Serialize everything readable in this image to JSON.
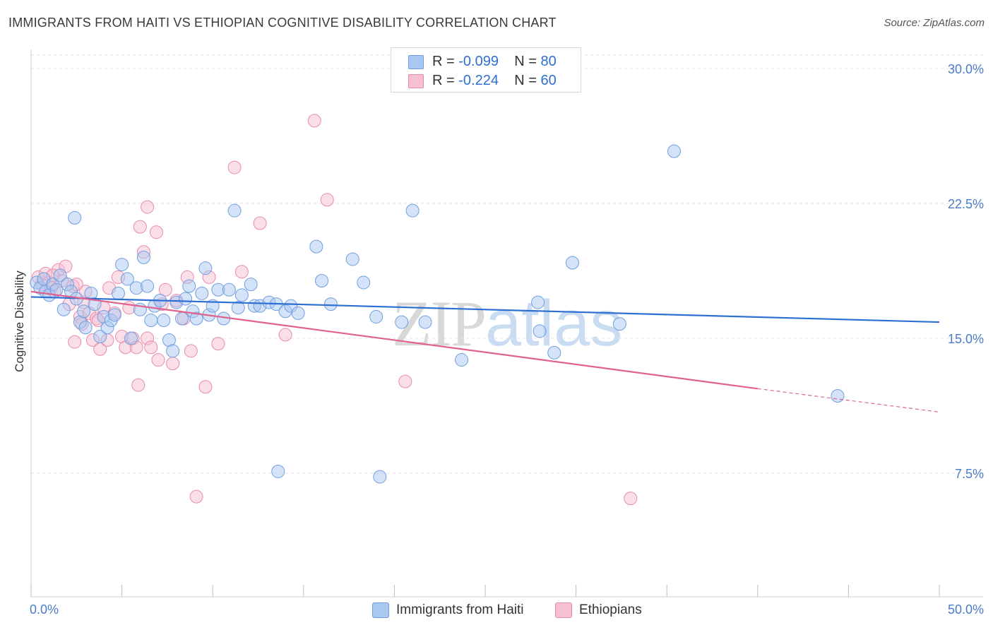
{
  "header": {
    "title": "IMMIGRANTS FROM HAITI VS ETHIOPIAN COGNITIVE DISABILITY CORRELATION CHART",
    "source": "Source: ZipAtlas.com"
  },
  "stats": [
    {
      "r_label": "R =",
      "r_value": "-0.099",
      "n_label": "N =",
      "n_value": "80",
      "color": "#a9c8f0",
      "border": "#6f9fe0"
    },
    {
      "r_label": "R =",
      "r_value": "-0.224",
      "n_label": "N =",
      "n_value": "60",
      "color": "#f7c0d2",
      "border": "#e88aac"
    }
  ],
  "legend": {
    "haiti": "Immigrants from Haiti",
    "ethiopians": "Ethiopians"
  },
  "watermark": {
    "zip": "ZIP",
    "atlas": "atlas"
  },
  "colors": {
    "haiti_fill": "#a9c8f0",
    "haiti_stroke": "#6f9fe0",
    "haiti_line": "#2e6fd3",
    "eth_fill": "#f7c0d2",
    "eth_stroke": "#e88aac",
    "eth_line": "#e0628f",
    "tick_text": "#4a7cc9",
    "grid": "#e3e3e3"
  },
  "chart_data": {
    "type": "scatter",
    "title": "IMMIGRANTS FROM HAITI VS ETHIOPIAN COGNITIVE DISABILITY CORRELATION CHART",
    "xlabel": "",
    "ylabel": "Cognitive Disability",
    "xlim": [
      0,
      50
    ],
    "ylim": [
      0,
      31
    ],
    "x_tick_labels": [
      "0.0%",
      "50.0%"
    ],
    "y_ticks": [
      7.5,
      15.0,
      22.5,
      30.0
    ],
    "y_tick_labels": [
      "7.5%",
      "15.0%",
      "22.5%",
      "30.0%"
    ],
    "series": [
      {
        "name": "Immigrants from Haiti",
        "r": -0.099,
        "n": 80,
        "trend": {
          "x0": 0,
          "y0": 17.3,
          "x1": 50,
          "y1": 15.9
        },
        "points": [
          [
            0.3,
            18.1
          ],
          [
            0.5,
            17.8
          ],
          [
            0.7,
            18.3
          ],
          [
            0.8,
            17.6
          ],
          [
            1.0,
            17.4
          ],
          [
            1.2,
            18.0
          ],
          [
            1.4,
            17.7
          ],
          [
            1.6,
            18.5
          ],
          [
            1.8,
            16.6
          ],
          [
            2.0,
            18.0
          ],
          [
            2.2,
            17.6
          ],
          [
            2.5,
            17.2
          ],
          [
            2.4,
            21.7
          ],
          [
            2.7,
            15.9
          ],
          [
            2.9,
            16.5
          ],
          [
            3.0,
            15.6
          ],
          [
            3.3,
            17.5
          ],
          [
            3.5,
            16.9
          ],
          [
            3.8,
            15.1
          ],
          [
            4.0,
            16.2
          ],
          [
            4.2,
            15.6
          ],
          [
            4.4,
            16.0
          ],
          [
            4.6,
            16.3
          ],
          [
            4.8,
            17.5
          ],
          [
            5.0,
            19.1
          ],
          [
            5.3,
            18.3
          ],
          [
            5.5,
            15.0
          ],
          [
            5.8,
            17.8
          ],
          [
            6.0,
            16.6
          ],
          [
            6.2,
            19.5
          ],
          [
            6.4,
            17.9
          ],
          [
            6.6,
            16.0
          ],
          [
            6.8,
            16.8
          ],
          [
            7.1,
            17.1
          ],
          [
            7.3,
            16.0
          ],
          [
            7.6,
            14.9
          ],
          [
            7.8,
            14.3
          ],
          [
            8.0,
            17.0
          ],
          [
            8.3,
            16.1
          ],
          [
            8.5,
            17.2
          ],
          [
            8.7,
            17.9
          ],
          [
            8.9,
            16.5
          ],
          [
            9.1,
            16.1
          ],
          [
            9.4,
            17.5
          ],
          [
            9.6,
            18.9
          ],
          [
            9.8,
            16.3
          ],
          [
            10.0,
            16.8
          ],
          [
            10.3,
            17.7
          ],
          [
            10.6,
            16.1
          ],
          [
            10.9,
            17.7
          ],
          [
            11.2,
            22.1
          ],
          [
            11.4,
            16.7
          ],
          [
            11.6,
            17.4
          ],
          [
            12.1,
            18.0
          ],
          [
            12.3,
            16.8
          ],
          [
            12.6,
            16.8
          ],
          [
            13.1,
            17.0
          ],
          [
            13.5,
            16.9
          ],
          [
            14.0,
            16.5
          ],
          [
            14.3,
            16.8
          ],
          [
            14.7,
            16.4
          ],
          [
            15.7,
            20.1
          ],
          [
            16.0,
            18.2
          ],
          [
            16.5,
            16.9
          ],
          [
            17.7,
            19.4
          ],
          [
            18.3,
            18.1
          ],
          [
            13.6,
            7.6
          ],
          [
            19.2,
            7.3
          ],
          [
            19.0,
            16.2
          ],
          [
            20.4,
            15.9
          ],
          [
            21.0,
            22.1
          ],
          [
            21.7,
            15.9
          ],
          [
            23.7,
            13.8
          ],
          [
            27.9,
            17.0
          ],
          [
            28.0,
            15.4
          ],
          [
            28.8,
            14.2
          ],
          [
            29.8,
            19.2
          ],
          [
            32.4,
            15.8
          ],
          [
            35.4,
            25.4
          ],
          [
            44.4,
            11.8
          ]
        ]
      },
      {
        "name": "Ethiopians",
        "r": -0.224,
        "n": 60,
        "trend": {
          "x0": 0,
          "y0": 17.6,
          "x1": 40,
          "y1": 12.2
        },
        "trend_dashed": {
          "x0": 40,
          "y0": 12.2,
          "x1": 50,
          "y1": 10.9
        },
        "points": [
          [
            0.4,
            18.4
          ],
          [
            0.6,
            18.0
          ],
          [
            0.8,
            18.6
          ],
          [
            1.0,
            18.1
          ],
          [
            1.1,
            17.8
          ],
          [
            1.3,
            17.6
          ],
          [
            1.5,
            18.8
          ],
          [
            1.7,
            18.2
          ],
          [
            1.9,
            19.0
          ],
          [
            2.1,
            16.9
          ],
          [
            2.3,
            17.9
          ],
          [
            2.5,
            18.0
          ],
          [
            2.4,
            14.8
          ],
          [
            2.7,
            16.2
          ],
          [
            2.9,
            17.0
          ],
          [
            3.0,
            17.6
          ],
          [
            3.2,
            16.4
          ],
          [
            3.4,
            14.9
          ],
          [
            3.6,
            16.1
          ],
          [
            3.8,
            14.4
          ],
          [
            4.0,
            16.7
          ],
          [
            4.2,
            14.9
          ],
          [
            4.3,
            17.8
          ],
          [
            4.6,
            16.4
          ],
          [
            4.8,
            18.4
          ],
          [
            5.0,
            15.1
          ],
          [
            5.2,
            14.5
          ],
          [
            5.4,
            16.7
          ],
          [
            5.6,
            15.0
          ],
          [
            5.8,
            14.5
          ],
          [
            5.9,
            12.4
          ],
          [
            6.0,
            21.2
          ],
          [
            6.2,
            19.8
          ],
          [
            6.4,
            15.0
          ],
          [
            6.6,
            14.5
          ],
          [
            6.9,
            20.9
          ],
          [
            7.0,
            13.8
          ],
          [
            7.4,
            17.7
          ],
          [
            7.8,
            13.6
          ],
          [
            8.0,
            17.1
          ],
          [
            8.4,
            16.1
          ],
          [
            8.6,
            18.4
          ],
          [
            8.8,
            14.3
          ],
          [
            9.6,
            12.3
          ],
          [
            9.8,
            18.4
          ],
          [
            10.3,
            14.7
          ],
          [
            11.2,
            24.5
          ],
          [
            11.6,
            18.7
          ],
          [
            12.6,
            21.4
          ],
          [
            14.0,
            15.2
          ],
          [
            15.6,
            27.1
          ],
          [
            16.3,
            22.7
          ],
          [
            20.6,
            12.6
          ],
          [
            6.4,
            22.3
          ],
          [
            9.1,
            6.2
          ],
          [
            33.0,
            6.1
          ],
          [
            1.2,
            18.5
          ],
          [
            3.7,
            16.0
          ],
          [
            2.8,
            15.8
          ],
          [
            7.2,
            16.9
          ]
        ]
      }
    ]
  }
}
